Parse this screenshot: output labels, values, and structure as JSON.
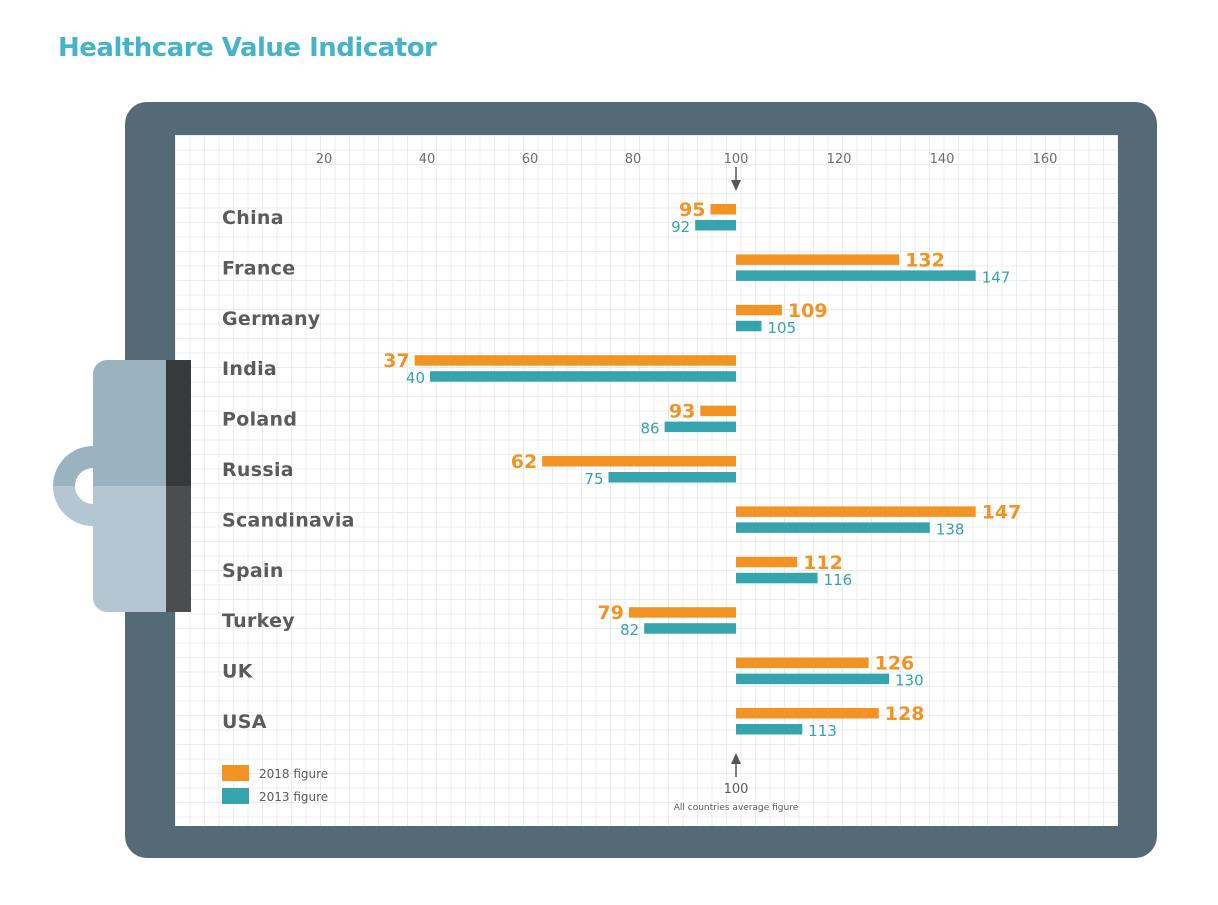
{
  "title": "Healthcare Value Indicator",
  "colors": {
    "series_2018": "#f39324",
    "series_2013": "#36a4ac",
    "title": "#47b3c8",
    "board": "#546a77"
  },
  "chart_data": {
    "type": "bar",
    "orientation": "horizontal",
    "title": "Healthcare Value Indicator",
    "baseline": 100,
    "x_ticks": [
      20,
      40,
      60,
      80,
      100,
      120,
      140,
      160
    ],
    "xlim": [
      10,
      170
    ],
    "grid": true,
    "legend_position": "bottom-left",
    "categories": [
      "China",
      "France",
      "Germany",
      "India",
      "Poland",
      "Russia",
      "Scandinavia",
      "Spain",
      "Turkey",
      "UK",
      "USA"
    ],
    "series": [
      {
        "name": "2018 figure",
        "color": "#f39324",
        "values": [
          95,
          132,
          109,
          37,
          93,
          62,
          147,
          112,
          79,
          126,
          128
        ]
      },
      {
        "name": "2013 figure",
        "color": "#36a4ac",
        "values": [
          92,
          147,
          105,
          40,
          86,
          75,
          138,
          116,
          82,
          130,
          113
        ]
      }
    ],
    "reference": {
      "value": "100",
      "label": "All countries average figure"
    }
  }
}
